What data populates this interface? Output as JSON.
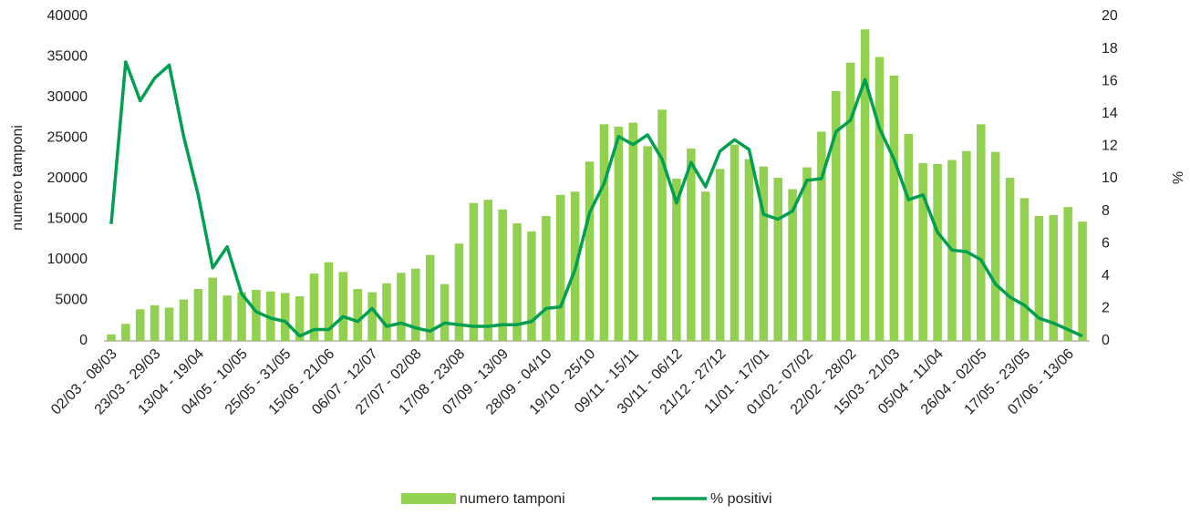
{
  "chart_data": {
    "type": "bar-line",
    "categories": [
      "02/03 - 08/03",
      null,
      null,
      "23/03 - 29/03",
      null,
      null,
      "13/04 - 19/04",
      null,
      null,
      "04/05 - 10/05",
      null,
      null,
      "25/05 - 31/05",
      null,
      null,
      "15/06 - 21/06",
      null,
      null,
      "06/07 - 12/07",
      null,
      null,
      "27/07 - 02/08",
      null,
      null,
      "17/08 - 23/08",
      null,
      null,
      "07/09 - 13/09",
      null,
      null,
      "28/09 - 04/10",
      null,
      null,
      "19/10 - 25/10",
      null,
      null,
      "09/11 - 15/11",
      null,
      null,
      "30/11 - 06/12",
      null,
      null,
      "21/12 - 27/12",
      null,
      null,
      "11/01 - 17/01",
      null,
      null,
      "01/02 - 07/02",
      null,
      null,
      "22/02 - 28/02",
      null,
      null,
      "15/03 - 21/03",
      null,
      null,
      "05/04 - 11/04",
      null,
      null,
      "26/04 - 02/05",
      null,
      null,
      "17/05 - 23/05",
      null,
      null,
      "07/06 - 13/06",
      null
    ],
    "series": [
      {
        "name": "numero tamponi",
        "type": "bar",
        "color": "#92d050",
        "values": [
          800,
          2100,
          3900,
          4400,
          4100,
          5100,
          6400,
          7800,
          5600,
          6000,
          6300,
          6100,
          5900,
          5500,
          8300,
          9700,
          8500,
          6400,
          6000,
          7100,
          8400,
          8900,
          10600,
          7000,
          12000,
          17000,
          17400,
          16200,
          14500,
          13500,
          15400,
          18000,
          18400,
          22100,
          26700,
          26400,
          26900,
          24000,
          28500,
          20000,
          23700,
          18400,
          21200,
          24200,
          22400,
          21500,
          20100,
          18700,
          21400,
          25800,
          30800,
          34300,
          38400,
          35000,
          32700,
          25500,
          21900,
          21800,
          22300,
          23400,
          26700,
          23300,
          20100,
          17600,
          15400,
          15500,
          16500,
          14700
        ]
      },
      {
        "name": "% positivi",
        "type": "line",
        "axis": "y2",
        "color": "#00a050",
        "values": [
          7.2,
          17.2,
          14.8,
          16.2,
          17.0,
          12.6,
          9.0,
          4.5,
          5.8,
          2.9,
          1.8,
          1.4,
          1.2,
          0.3,
          0.7,
          0.7,
          1.5,
          1.2,
          2.0,
          0.9,
          1.1,
          0.8,
          0.6,
          1.1,
          1.0,
          0.9,
          0.9,
          1.0,
          1.0,
          1.2,
          2.0,
          2.1,
          4.4,
          7.9,
          9.7,
          12.6,
          12.1,
          12.7,
          11.2,
          8.5,
          11.0,
          9.5,
          11.7,
          12.4,
          11.8,
          7.8,
          7.5,
          8.0,
          9.9,
          10.0,
          12.9,
          13.6,
          16.1,
          13.1,
          11.2,
          8.7,
          9.0,
          6.7,
          5.6,
          5.5,
          5.0,
          3.5,
          2.7,
          2.2,
          1.4,
          1.1,
          0.7,
          0.3
        ]
      }
    ],
    "y_label": "numero tamponi",
    "y2_label": "%",
    "ylim": [
      0,
      40000
    ],
    "yticks": [
      0,
      5000,
      10000,
      15000,
      20000,
      25000,
      30000,
      35000,
      40000
    ],
    "y2lim": [
      0,
      20
    ],
    "y2ticks": [
      0,
      2,
      4,
      6,
      8,
      10,
      12,
      14,
      16,
      18,
      20
    ],
    "legend": "bottom"
  }
}
